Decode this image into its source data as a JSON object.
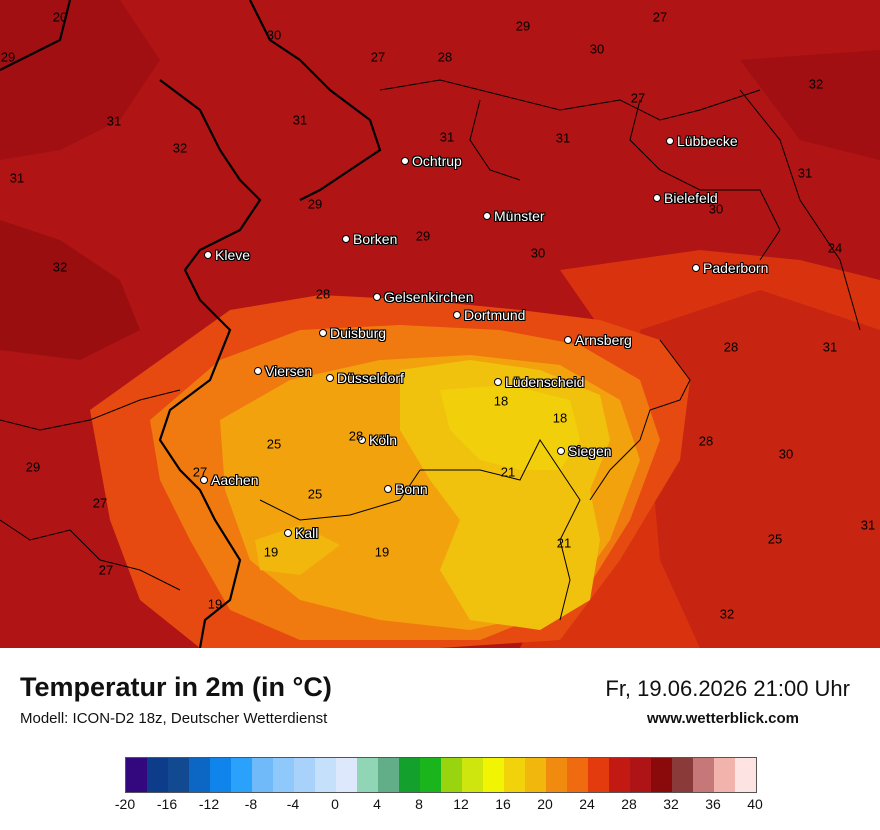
{
  "title": "Temperatur in 2m (in °C)",
  "model": "Modell: ICON-D2 18z, Deutscher Wetterdienst",
  "datetime": "Fr, 19.06.2026 21:00 Uhr",
  "website": "www.wetterblick.com",
  "cities": [
    "Lübbecke",
    "Ochtrup",
    "Bielefeld",
    "Münster",
    "Borken",
    "Kleve",
    "Paderborn",
    "Gelsenkirchen",
    "Dortmund",
    "Duisburg",
    "Arnsberg",
    "Viersen",
    "Düsseldorf",
    "Lüdenscheid",
    "Köln",
    "Siegen",
    "Aachen",
    "Bonn",
    "Kall"
  ],
  "temperature_labels": [
    "20",
    "30",
    "27",
    "29",
    "27",
    "28",
    "30",
    "29",
    "31",
    "31",
    "32",
    "27",
    "31",
    "31",
    "32",
    "31",
    "29",
    "31",
    "30",
    "24",
    "32",
    "29",
    "30",
    "28",
    "28",
    "31",
    "28",
    "18",
    "18",
    "25",
    "28",
    "30",
    "29",
    "25",
    "21",
    "27",
    "21",
    "31",
    "19",
    "19",
    "25",
    "27",
    "27",
    "19",
    "32"
  ],
  "scale": {
    "ticks": [
      "-20",
      "-16",
      "-12",
      "-8",
      "-4",
      "0",
      "4",
      "8",
      "12",
      "16",
      "20",
      "24",
      "28",
      "32",
      "36",
      "40"
    ],
    "colors": [
      "#33077e",
      "#0d3c8b",
      "#114a90",
      "#0b66c4",
      "#0f84eb",
      "#2aa2fb",
      "#71baf9",
      "#8fc8fb",
      "#a9d2fa",
      "#c4e0fa",
      "#dde8fc",
      "#8fd5b6",
      "#62ae88",
      "#13a02c",
      "#1ab41c",
      "#99d50e",
      "#cfe60e",
      "#f1f503",
      "#f1d20b",
      "#f2b70d",
      "#f08b0f",
      "#f06a10",
      "#e33a0e",
      "#c21a12",
      "#ae1315",
      "#8a0a0b",
      "#8b3a3a",
      "#c67777",
      "#f3b3ad",
      "#fde3e1"
    ]
  }
}
